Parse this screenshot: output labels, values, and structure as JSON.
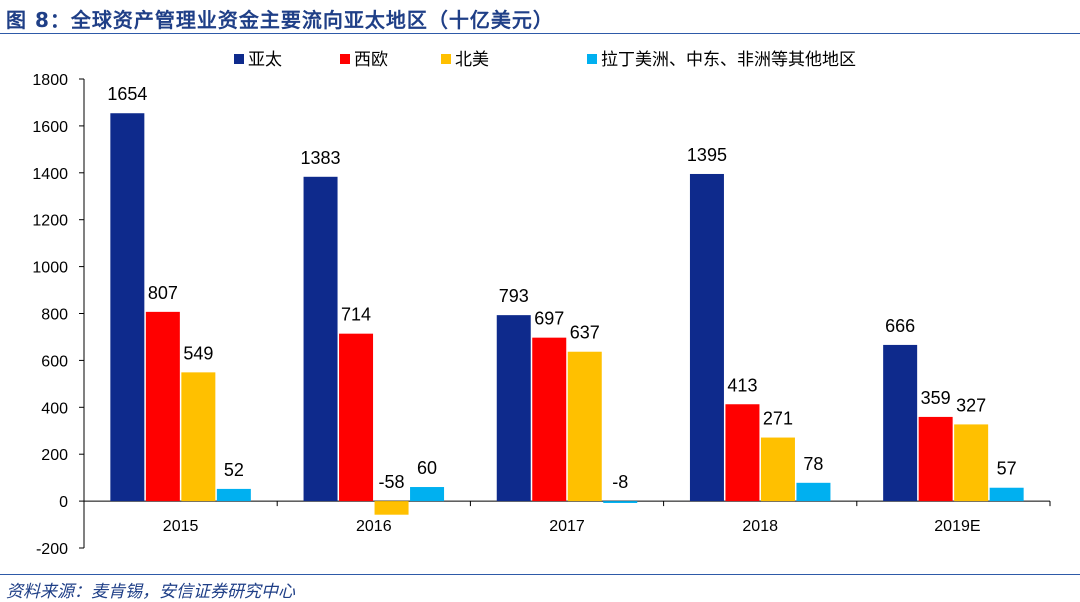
{
  "figure": {
    "title": "图 8：全球资产管理业资金主要流向亚太地区（十亿美元）",
    "source": "资料来源：麦肯锡，安信证券研究中心"
  },
  "chart_data": {
    "type": "bar",
    "title": "",
    "xlabel": "",
    "ylabel": "",
    "categories": [
      "2015",
      "2016",
      "2017",
      "2018",
      "2019E"
    ],
    "series": [
      {
        "name": "亚太",
        "color": "#0e2a8c",
        "values": [
          1654,
          1383,
          793,
          1395,
          666
        ]
      },
      {
        "name": "西欧",
        "color": "#ff0000",
        "values": [
          807,
          714,
          697,
          413,
          359
        ]
      },
      {
        "name": "北美",
        "color": "#ffc000",
        "values": [
          549,
          -58,
          637,
          271,
          327
        ]
      },
      {
        "name": "拉丁美洲、中东、非洲等其他地区",
        "color": "#00b0f0",
        "values": [
          52,
          60,
          -8,
          78,
          57
        ]
      }
    ],
    "ylim": [
      -200,
      1800
    ],
    "yticks": [
      -200,
      0,
      200,
      400,
      600,
      800,
      1000,
      1200,
      1400,
      1600,
      1800
    ],
    "grid": false,
    "legend": "top"
  }
}
